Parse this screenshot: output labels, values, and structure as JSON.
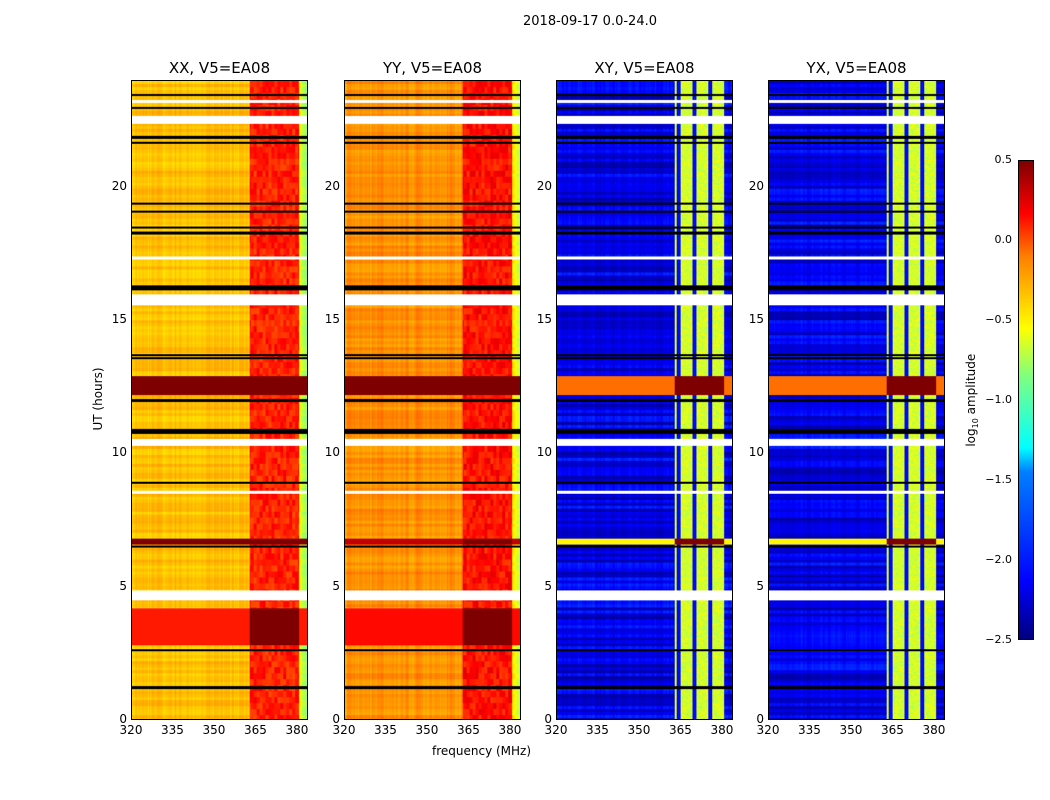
{
  "chart_data": {
    "type": "heatmap",
    "title": "2018-09-17 0.0-24.0",
    "xlabel": "frequency (MHz)",
    "ylabel": "UT (hours)",
    "xlim": [
      320,
      384
    ],
    "ylim": [
      0,
      24
    ],
    "xticks": [
      "320",
      "335",
      "350",
      "365",
      "380"
    ],
    "yticks": [
      "0",
      "5",
      "10",
      "15",
      "20"
    ],
    "colorbar": {
      "label": "log10 amplitude",
      "label_main": "log",
      "label_sub": "10",
      "label_rest": " amplitude",
      "range": [
        -2.5,
        0.5
      ],
      "ticks": [
        "0.5",
        "0.0",
        "−0.5",
        "−1.0",
        "−1.5",
        "−2.0",
        "−2.5"
      ],
      "colormap": "jet"
    },
    "panels": [
      {
        "title": "XX, V5=EA08",
        "base_log_amplitude": -0.45,
        "rfi_band_mhz": [
          363,
          381
        ],
        "rfi_level": -0.1,
        "strong_bands_hours": [
          [
            2.8,
            4.2,
            0.05
          ],
          [
            12.2,
            12.9,
            0.5
          ],
          [
            6.6,
            6.8,
            0.5
          ]
        ]
      },
      {
        "title": "YY, V5=EA08",
        "base_log_amplitude": -0.3,
        "rfi_band_mhz": [
          363,
          381
        ],
        "rfi_level": -0.05,
        "strong_bands_hours": [
          [
            2.8,
            4.2,
            0.1
          ],
          [
            12.2,
            12.9,
            0.5
          ],
          [
            6.6,
            6.8,
            0.3
          ]
        ]
      },
      {
        "title": "XY, V5=EA08",
        "base_log_amplitude": -2.2,
        "rfi_band_mhz": [
          363,
          381
        ],
        "rfi_level": -0.9,
        "strong_bands_hours": [
          [
            12.2,
            12.9,
            -0.2
          ],
          [
            6.6,
            6.8,
            -0.6
          ]
        ]
      },
      {
        "title": "YX, V5=EA08",
        "base_log_amplitude": -2.2,
        "rfi_band_mhz": [
          363,
          381
        ],
        "rfi_level": -0.9,
        "strong_bands_hours": [
          [
            12.2,
            12.9,
            -0.2
          ],
          [
            6.6,
            6.8,
            -0.6
          ]
        ]
      }
    ],
    "flagged_hours": [
      [
        4.5,
        4.85
      ],
      [
        10.3,
        10.55
      ],
      [
        15.6,
        16.0
      ],
      [
        22.4,
        22.7
      ],
      [
        17.3,
        17.4
      ],
      [
        8.5,
        8.6
      ],
      [
        23.2,
        23.3
      ]
    ],
    "black_line_hours": [
      1.2,
      2.6,
      6.5,
      8.9,
      10.8,
      10.9,
      12.0,
      13.6,
      13.7,
      16.2,
      16.3,
      18.3,
      18.5,
      19.1,
      19.4,
      21.7,
      21.9,
      23.0,
      23.5
    ]
  }
}
